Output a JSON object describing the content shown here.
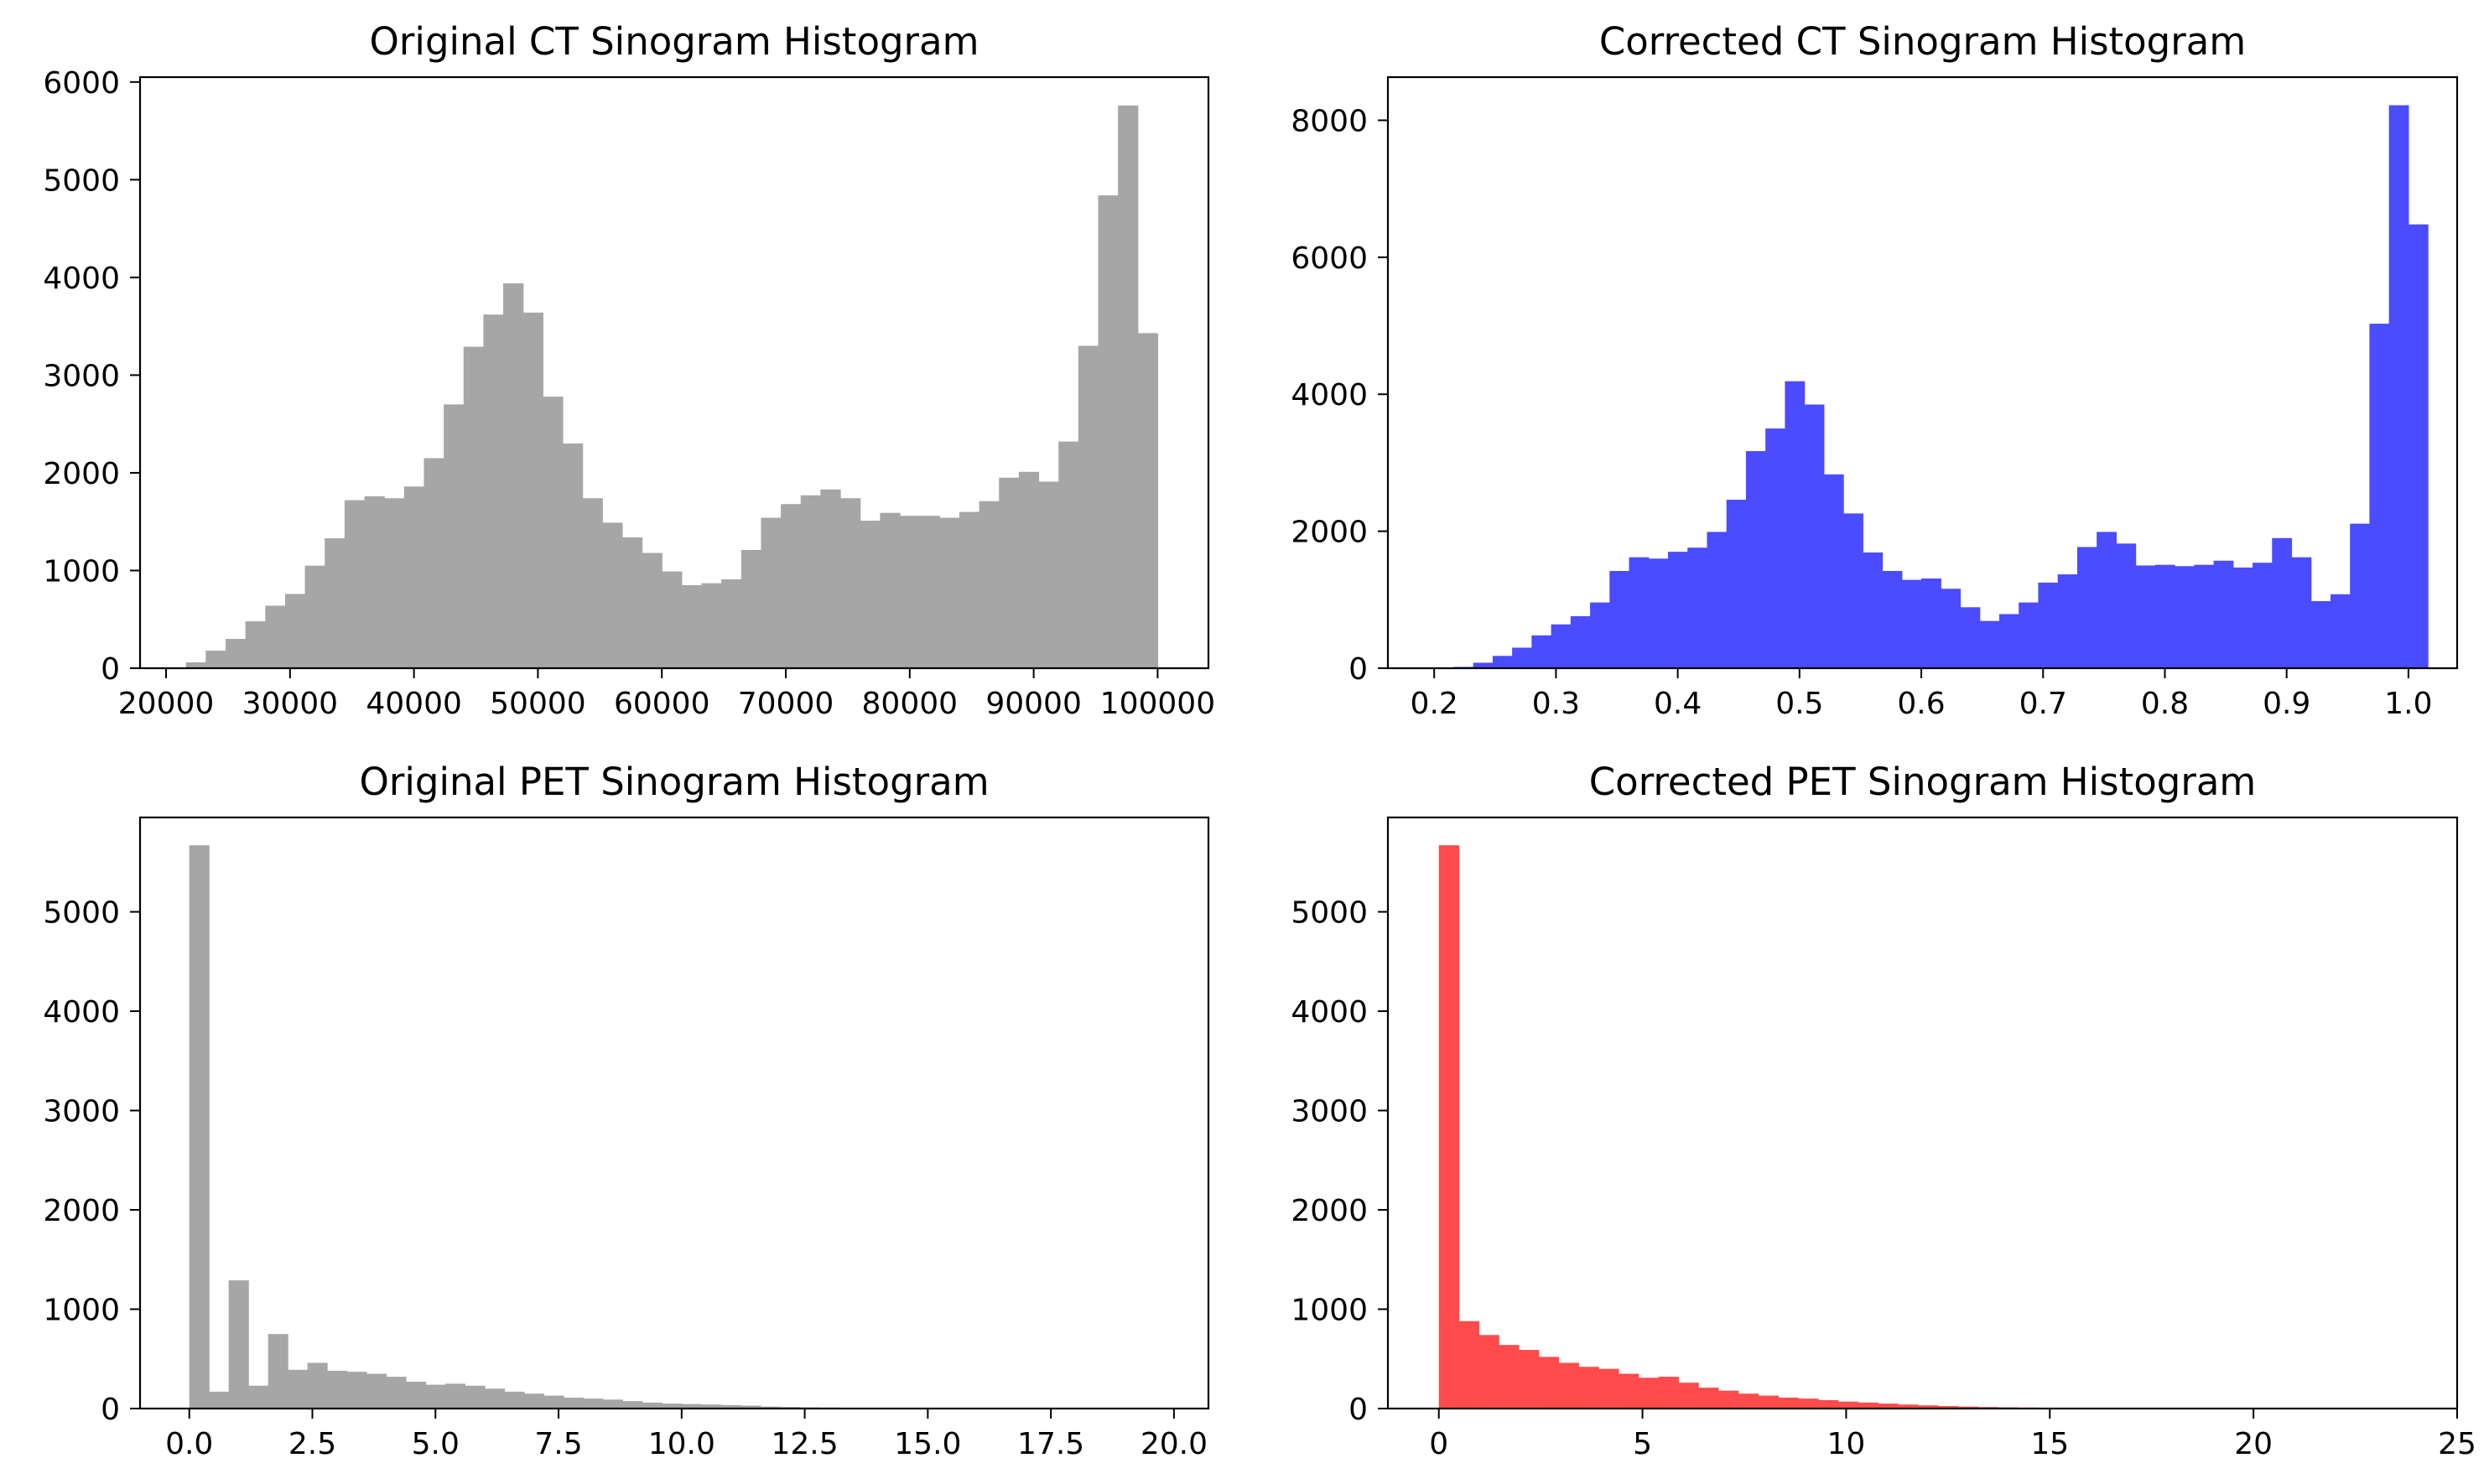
{
  "chart_data": [
    {
      "type": "bar",
      "title": "Original CT Sinogram Histogram",
      "xlabel": "",
      "ylabel": "",
      "color": "#a6a6a6",
      "xlim": [
        17900,
        104100
      ],
      "ylim": [
        0,
        6050
      ],
      "xticks": [
        20000,
        30000,
        40000,
        50000,
        60000,
        70000,
        80000,
        90000,
        100000
      ],
      "xticklabels": [
        "20000",
        "30000",
        "40000",
        "50000",
        "60000",
        "70000",
        "80000",
        "90000",
        "100000"
      ],
      "yticks": [
        0,
        1000,
        2000,
        3000,
        4000,
        5000,
        6000
      ],
      "yticklabels": [
        "0",
        "1000",
        "2000",
        "3000",
        "4000",
        "5000",
        "6000"
      ],
      "bin_start": 20000,
      "bin_width": 1600,
      "values": [
        5,
        60,
        180,
        300,
        480,
        640,
        760,
        1050,
        1330,
        1720,
        1760,
        1740,
        1860,
        2150,
        2700,
        3290,
        3620,
        3940,
        3640,
        2780,
        2300,
        1740,
        1490,
        1340,
        1180,
        990,
        850,
        870,
        910,
        1210,
        1540,
        1680,
        1770,
        1830,
        1740,
        1510,
        1590,
        1560,
        1560,
        1540,
        1600,
        1710,
        1950,
        2010,
        1910,
        2320,
        3300,
        4840,
        5760,
        3430
      ]
    },
    {
      "type": "bar",
      "title": "Corrected CT Sinogram Histogram",
      "xlabel": "",
      "ylabel": "",
      "color": "#4b4bff",
      "xlim": [
        0.162,
        1.04
      ],
      "ylim": [
        0,
        8630
      ],
      "xticks": [
        0.2,
        0.3,
        0.4,
        0.5,
        0.6,
        0.7,
        0.8,
        0.9,
        1.0
      ],
      "xticklabels": [
        "0.2",
        "0.3",
        "0.4",
        "0.5",
        "0.6",
        "0.7",
        "0.8",
        "0.9",
        "1.0"
      ],
      "yticks": [
        0,
        2000,
        4000,
        6000,
        8000
      ],
      "yticklabels": [
        "0",
        "2000",
        "4000",
        "6000",
        "8000"
      ],
      "bin_start": 0.2,
      "bin_width": 0.016,
      "values": [
        5,
        20,
        80,
        180,
        300,
        480,
        640,
        760,
        960,
        1420,
        1620,
        1600,
        1700,
        1760,
        1990,
        2460,
        3170,
        3500,
        4190,
        3850,
        2830,
        2260,
        1690,
        1420,
        1290,
        1310,
        1160,
        890,
        690,
        790,
        960,
        1250,
        1370,
        1770,
        1990,
        1820,
        1500,
        1510,
        1490,
        1510,
        1570,
        1470,
        1540,
        1900,
        1620,
        980,
        1080,
        2110,
        5030,
        8220,
        6480
      ]
    },
    {
      "type": "bar",
      "title": "Original PET Sinogram Histogram",
      "xlabel": "",
      "ylabel": "",
      "color": "#a6a6a6",
      "xlim": [
        -1.0,
        20.7
      ],
      "ylim": [
        0,
        5950
      ],
      "xticks": [
        0,
        2.5,
        5,
        7.5,
        10,
        12.5,
        15,
        17.5,
        20
      ],
      "xticklabels": [
        "0.0",
        "2.5",
        "5.0",
        "7.5",
        "10.0",
        "12.5",
        "15.0",
        "17.5",
        "20.0"
      ],
      "yticks": [
        0,
        1000,
        2000,
        3000,
        4000,
        5000
      ],
      "yticklabels": [
        "0",
        "1000",
        "2000",
        "3000",
        "4000",
        "5000"
      ],
      "bin_start": 0,
      "bin_width": 0.4,
      "values": [
        5670,
        170,
        1290,
        230,
        750,
        390,
        460,
        380,
        370,
        350,
        320,
        270,
        240,
        250,
        230,
        200,
        170,
        150,
        130,
        110,
        100,
        90,
        75,
        60,
        50,
        45,
        40,
        35,
        30,
        20,
        15,
        12,
        10,
        8,
        6,
        5,
        4,
        3,
        2,
        2,
        1,
        1,
        1,
        1,
        1,
        0,
        0,
        0,
        0,
        0
      ]
    },
    {
      "type": "bar",
      "title": "Corrected PET Sinogram Histogram",
      "xlabel": "",
      "ylabel": "",
      "color": "#ff4b4b",
      "xlim": [
        -1.25,
        25.0
      ],
      "ylim": [
        0,
        5950
      ],
      "xticks": [
        0,
        5,
        10,
        15,
        20,
        25
      ],
      "xticklabels": [
        "0",
        "5",
        "10",
        "15",
        "20",
        "25"
      ],
      "yticks": [
        0,
        1000,
        2000,
        3000,
        4000,
        5000
      ],
      "yticklabels": [
        "0",
        "1000",
        "2000",
        "3000",
        "4000",
        "5000"
      ],
      "bin_start": 0,
      "bin_width": 0.49,
      "values": [
        5670,
        880,
        740,
        640,
        590,
        520,
        460,
        420,
        400,
        350,
        310,
        320,
        260,
        210,
        180,
        150,
        130,
        110,
        100,
        85,
        70,
        60,
        50,
        40,
        32,
        25,
        20,
        15,
        12,
        10,
        8,
        6,
        5,
        4,
        3,
        2,
        2,
        1,
        1,
        1,
        0,
        0,
        0,
        0,
        0,
        0,
        0,
        0,
        0,
        0
      ]
    }
  ]
}
